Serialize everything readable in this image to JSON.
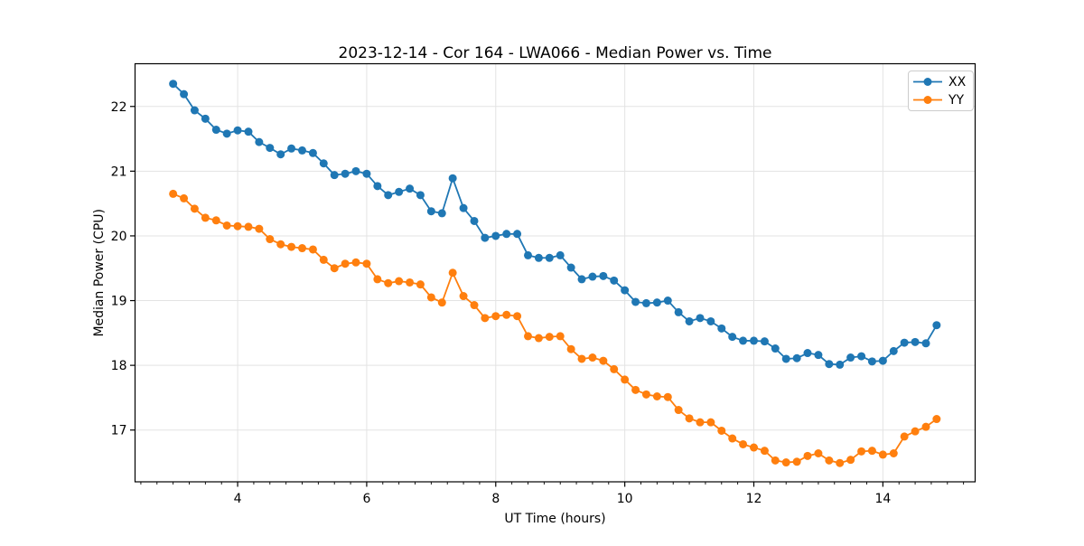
{
  "chart_data": {
    "type": "line",
    "title": "2023-12-14 - Cor 164 - LWA066 - Median Power vs. Time",
    "xlabel": "UT Time (hours)",
    "ylabel": "Median Power (CPU)",
    "xlim": [
      2.41,
      15.43
    ],
    "ylim": [
      16.2,
      22.66
    ],
    "xticks": [
      4,
      6,
      8,
      10,
      12,
      14
    ],
    "yticks": [
      17,
      18,
      19,
      20,
      21,
      22
    ],
    "x_minor_step": 0.25,
    "grid": true,
    "legend_position": "upper right",
    "x": [
      3.0,
      3.167,
      3.333,
      3.5,
      3.667,
      3.833,
      4.0,
      4.167,
      4.333,
      4.5,
      4.667,
      4.833,
      5.0,
      5.167,
      5.333,
      5.5,
      5.667,
      5.833,
      6.0,
      6.167,
      6.333,
      6.5,
      6.667,
      6.833,
      7.0,
      7.167,
      7.333,
      7.5,
      7.667,
      7.833,
      8.0,
      8.167,
      8.333,
      8.5,
      8.667,
      8.833,
      9.0,
      9.167,
      9.333,
      9.5,
      9.667,
      9.833,
      10.0,
      10.167,
      10.333,
      10.5,
      10.667,
      10.833,
      11.0,
      11.167,
      11.333,
      11.5,
      11.667,
      11.833,
      12.0,
      12.167,
      12.333,
      12.5,
      12.667,
      12.833,
      13.0,
      13.167,
      13.333,
      13.5,
      13.667,
      13.833,
      14.0,
      14.167,
      14.333,
      14.5,
      14.667,
      14.833
    ],
    "series": [
      {
        "name": "XX",
        "color": "#1f77b4",
        "values": [
          22.35,
          22.19,
          21.94,
          21.81,
          21.64,
          21.58,
          21.63,
          21.61,
          21.45,
          21.36,
          21.26,
          21.35,
          21.32,
          21.28,
          21.12,
          20.94,
          20.96,
          21.0,
          20.96,
          20.77,
          20.63,
          20.68,
          20.73,
          20.63,
          20.38,
          20.35,
          20.89,
          20.43,
          20.23,
          19.97,
          20.0,
          20.03,
          20.03,
          19.7,
          19.66,
          19.66,
          19.7,
          19.51,
          19.33,
          19.37,
          19.38,
          19.31,
          19.16,
          18.98,
          18.96,
          18.97,
          19.0,
          18.82,
          18.68,
          18.73,
          18.68,
          18.57,
          18.44,
          18.38,
          18.38,
          18.37,
          18.26,
          18.1,
          18.11,
          18.19,
          18.16,
          18.02,
          18.01,
          18.12,
          18.14,
          18.06,
          18.07,
          18.22,
          18.35,
          18.36,
          18.34,
          18.62
        ]
      },
      {
        "name": "YY",
        "color": "#ff7f0e",
        "values": [
          20.65,
          20.58,
          20.42,
          20.28,
          20.24,
          20.16,
          20.15,
          20.14,
          20.11,
          19.95,
          19.87,
          19.83,
          19.81,
          19.79,
          19.63,
          19.5,
          19.57,
          19.59,
          19.57,
          19.33,
          19.27,
          19.3,
          19.28,
          19.25,
          19.05,
          18.97,
          19.43,
          19.07,
          18.93,
          18.73,
          18.76,
          18.78,
          18.76,
          18.45,
          18.42,
          18.44,
          18.45,
          18.25,
          18.1,
          18.12,
          18.07,
          17.94,
          17.78,
          17.62,
          17.55,
          17.52,
          17.51,
          17.31,
          17.18,
          17.12,
          17.12,
          16.99,
          16.87,
          16.78,
          16.73,
          16.68,
          16.53,
          16.5,
          16.51,
          16.6,
          16.64,
          16.53,
          16.49,
          16.54,
          16.67,
          16.68,
          16.62,
          16.64,
          16.9,
          16.98,
          17.05,
          17.17
        ]
      }
    ],
    "styles": {
      "grid_color": "#e3e3e3",
      "spine_color": "#000000",
      "tick_color": "#000000",
      "marker_radius": 4.5,
      "line_width": 1.8
    }
  }
}
